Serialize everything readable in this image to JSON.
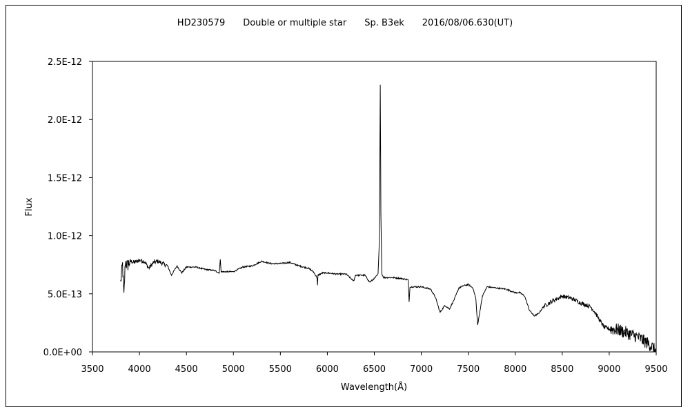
{
  "chart_data": {
    "type": "line",
    "title": "HD230579  Double or multiple star  Sp. B3ek  2016/08/06.630(UT)",
    "xlabel": "Wavelength(Å)",
    "ylabel": "Flux",
    "xlim": [
      3500,
      9500
    ],
    "ylim": [
      0,
      2.5e-12
    ],
    "x_ticks": [
      3500,
      4000,
      4500,
      5000,
      5500,
      6000,
      6500,
      7000,
      7500,
      8000,
      8500,
      9000,
      9500
    ],
    "x_tick_labels": [
      "3500",
      "4000",
      "4500",
      "5000",
      "5500",
      "6000",
      "6500",
      "7000",
      "7500",
      "8000",
      "8500",
      "9000",
      "9500"
    ],
    "y_ticks": [
      0,
      5e-13,
      1e-12,
      1.5e-12,
      2e-12,
      2.5e-12
    ],
    "y_tick_labels": [
      "0.0E+00",
      "5.0E-13",
      "1.0E-12",
      "1.5E-12",
      "2.0E-12",
      "2.5E-12"
    ],
    "grid": false,
    "line_color": "#000000",
    "series": [
      {
        "x": [
          3800,
          3820,
          3835,
          3850,
          3870,
          3900,
          3950,
          4000,
          4050,
          4100,
          4150,
          4200,
          4250,
          4300,
          4340,
          4400,
          4450,
          4500,
          4600,
          4700,
          4800,
          4850,
          4861,
          4870,
          4900,
          5000,
          5100,
          5200,
          5300,
          5400,
          5500,
          5600,
          5700,
          5800,
          5850,
          5890,
          5895,
          5900,
          5950,
          6000,
          6100,
          6200,
          6280,
          6300,
          6350,
          6400,
          6450,
          6500,
          6540,
          6555,
          6563,
          6570,
          6580,
          6600,
          6700,
          6800,
          6860,
          6870,
          6880,
          6900,
          7000,
          7100,
          7150,
          7200,
          7250,
          7300,
          7350,
          7400,
          7450,
          7500,
          7550,
          7580,
          7600,
          7620,
          7650,
          7700,
          7800,
          7900,
          8000,
          8050,
          8100,
          8150,
          8200,
          8250,
          8300,
          8400,
          8500,
          8600,
          8700,
          8800,
          8850,
          8900,
          8950,
          9000,
          9100,
          9200,
          9300,
          9400,
          9450,
          9500
        ],
        "y": [
          6e-13,
          7.5e-13,
          4.7e-13,
          7.8e-13,
          7.4e-13,
          7.8e-13,
          7.7e-13,
          7.9e-13,
          7.8e-13,
          7.2e-13,
          7.7e-13,
          7.8e-13,
          7.6e-13,
          7.4e-13,
          6.6e-13,
          7.4e-13,
          6.8e-13,
          7.3e-13,
          7.3e-13,
          7.1e-13,
          7e-13,
          6.8e-13,
          8e-13,
          6.9e-13,
          6.9e-13,
          6.9e-13,
          7.3e-13,
          7.4e-13,
          7.8e-13,
          7.6e-13,
          7.6e-13,
          7.7e-13,
          7.4e-13,
          7.2e-13,
          6.9e-13,
          6.4e-13,
          5.7e-13,
          6.6e-13,
          6.8e-13,
          6.8e-13,
          6.7e-13,
          6.7e-13,
          6.1e-13,
          6.6e-13,
          6.6e-13,
          6.6e-13,
          6e-13,
          6.3e-13,
          6.7e-13,
          1e-12,
          2.3e-12,
          1.2e-12,
          6.7e-13,
          6.4e-13,
          6.4e-13,
          6.3e-13,
          6.2e-13,
          4.3e-13,
          5.6e-13,
          5.6e-13,
          5.6e-13,
          5.4e-13,
          4.7e-13,
          3.4e-13,
          4e-13,
          3.7e-13,
          4.5e-13,
          5.5e-13,
          5.7e-13,
          5.8e-13,
          5.5e-13,
          4.6e-13,
          2.3e-13,
          3.3e-13,
          4.8e-13,
          5.6e-13,
          5.5e-13,
          5.4e-13,
          5.1e-13,
          5.1e-13,
          4.8e-13,
          3.6e-13,
          3.1e-13,
          3.3e-13,
          3.9e-13,
          4.4e-13,
          4.8e-13,
          4.6e-13,
          4.2e-13,
          3.9e-13,
          3.4e-13,
          2.7e-13,
          2.1e-13,
          2e-13,
          1.9e-13,
          1.6e-13,
          1.3e-13,
          8e-14,
          5e-14,
          0
        ]
      }
    ]
  }
}
